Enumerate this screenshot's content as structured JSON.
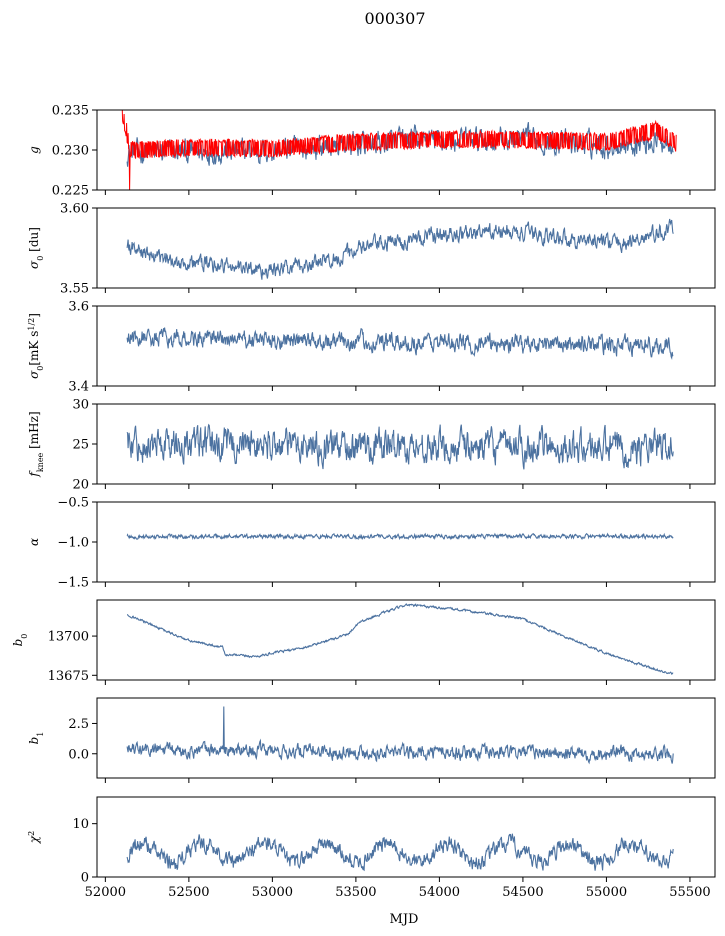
{
  "figure": {
    "title": "000307",
    "xlabel": "MJD"
  },
  "colors": {
    "main": "#4c72a0",
    "red": "#ff0000",
    "axis": "#000000"
  },
  "chart_data": [
    {
      "type": "line",
      "id": "g",
      "ylabel_html": "g",
      "xlim": [
        51950,
        55650
      ],
      "ylim": [
        0.225,
        0.235
      ],
      "yticks": [
        0.225,
        0.23,
        0.235
      ],
      "ytick_labels": [
        "0.225",
        "0.230",
        "0.235"
      ],
      "series": [
        {
          "color": "#4c72a0",
          "x_range": [
            52130,
            55400
          ],
          "mean": 0.2307,
          "trend": [
            [
              52130,
              0.2297
            ],
            [
              53000,
              0.2299
            ],
            [
              53800,
              0.2312
            ],
            [
              54500,
              0.2313
            ],
            [
              55000,
              0.2306
            ],
            [
              55400,
              0.2313
            ]
          ],
          "noise": 0.0012
        },
        {
          "color": "#ff0000",
          "x_range": [
            52100,
            55420
          ],
          "band": 0.0011,
          "trend": [
            [
              52100,
              0.235
            ],
            [
              52150,
              0.23
            ],
            [
              52500,
              0.2303
            ],
            [
              53000,
              0.2302
            ],
            [
              53500,
              0.231
            ],
            [
              54000,
              0.2313
            ],
            [
              54500,
              0.2313
            ],
            [
              55000,
              0.231
            ],
            [
              55300,
              0.2325
            ],
            [
              55420,
              0.2308
            ]
          ],
          "spike": {
            "x": 52145,
            "y": 0.225
          }
        }
      ]
    },
    {
      "type": "line",
      "id": "sigma0_du",
      "ylabel_html": "σ0 [du]",
      "xlim": [
        51950,
        55650
      ],
      "ylim": [
        3.55,
        3.6
      ],
      "yticks": [
        3.55,
        3.6
      ],
      "ytick_labels": [
        "3.55",
        "3.60"
      ],
      "series": [
        {
          "color": "#4c72a0",
          "x_range": [
            52130,
            55400
          ],
          "trend": [
            [
              52130,
              3.578
            ],
            [
              52300,
              3.568
            ],
            [
              52700,
              3.564
            ],
            [
              53000,
              3.561
            ],
            [
              53300,
              3.566
            ],
            [
              53600,
              3.577
            ],
            [
              54000,
              3.583
            ],
            [
              54400,
              3.585
            ],
            [
              54700,
              3.582
            ],
            [
              55100,
              3.578
            ],
            [
              55400,
              3.587
            ]
          ],
          "noise": 0.004
        }
      ]
    },
    {
      "type": "line",
      "id": "sigma0_mk",
      "ylabel_html": "σ0[mK s^1/2]",
      "xlim": [
        51950,
        55650
      ],
      "ylim": [
        3.4,
        3.6
      ],
      "yticks": [
        3.4,
        3.6
      ],
      "ytick_labels": [
        "3.4",
        "3.6"
      ],
      "series": [
        {
          "color": "#4c72a0",
          "x_range": [
            52130,
            55400
          ],
          "trend": [
            [
              52130,
              3.52
            ],
            [
              55400,
              3.5
            ]
          ],
          "noise": 0.018
        }
      ]
    },
    {
      "type": "line",
      "id": "fknee",
      "ylabel_html": "f_knee [mHz]",
      "xlim": [
        51950,
        55650
      ],
      "ylim": [
        20,
        30
      ],
      "yticks": [
        20,
        25,
        30
      ],
      "ytick_labels": [
        "20",
        "25",
        "30"
      ],
      "series": [
        {
          "color": "#4c72a0",
          "x_range": [
            52130,
            55400
          ],
          "trend": [
            [
              52130,
              25
            ],
            [
              55400,
              24.5
            ]
          ],
          "noise": 1.6
        }
      ]
    },
    {
      "type": "line",
      "id": "alpha",
      "ylabel_html": "α",
      "xlim": [
        51950,
        55650
      ],
      "ylim": [
        -1.5,
        -0.5
      ],
      "yticks": [
        -1.5,
        -1.0,
        -0.5
      ],
      "ytick_labels": [
        "−1.5",
        "−1.0",
        "−0.5"
      ],
      "series": [
        {
          "color": "#4c72a0",
          "x_range": [
            52130,
            55400
          ],
          "trend": [
            [
              52130,
              -0.93
            ],
            [
              55400,
              -0.93
            ]
          ],
          "noise": 0.02
        }
      ]
    },
    {
      "type": "line",
      "id": "b0",
      "ylabel_html": "b0",
      "xlim": [
        51950,
        55650
      ],
      "ylim": [
        13672,
        13723
      ],
      "yticks": [
        13675,
        13700
      ],
      "ytick_labels": [
        "13675",
        "13700"
      ],
      "series": [
        {
          "color": "#4c72a0",
          "x_range": [
            52130,
            55400
          ],
          "trend": [
            [
              52130,
              13714
            ],
            [
              52300,
              13706
            ],
            [
              52500,
              13697
            ],
            [
              52700,
              13693
            ],
            [
              52720,
              13688
            ],
            [
              52900,
              13687
            ],
            [
              53200,
              13693
            ],
            [
              53450,
              13701
            ],
            [
              53520,
              13709
            ],
            [
              53800,
              13720
            ],
            [
              54100,
              13717
            ],
            [
              54500,
              13711
            ],
            [
              54700,
              13702
            ],
            [
              55000,
              13689
            ],
            [
              55200,
              13682
            ],
            [
              55380,
              13676
            ]
          ],
          "noise": 0.6
        }
      ]
    },
    {
      "type": "line",
      "id": "b1",
      "ylabel_html": "b1",
      "xlim": [
        51950,
        55650
      ],
      "ylim": [
        -2.0,
        4.6
      ],
      "yticks": [
        0.0,
        2.5
      ],
      "ytick_labels": [
        "0.0",
        "2.5"
      ],
      "series": [
        {
          "color": "#4c72a0",
          "x_range": [
            52130,
            55400
          ],
          "trend": [
            [
              52130,
              0.3
            ],
            [
              55400,
              0.0
            ]
          ],
          "noise": 0.45,
          "spike": {
            "x": 52710,
            "y": 3.9
          }
        }
      ]
    },
    {
      "type": "line",
      "id": "chi2",
      "ylabel_html": "χ^2",
      "xlim": [
        51950,
        55650
      ],
      "ylim": [
        0,
        15
      ],
      "yticks": [
        0,
        10
      ],
      "ytick_labels": [
        "0",
        "10"
      ],
      "xticks": [
        52000,
        52500,
        53000,
        53500,
        54000,
        54500,
        55000,
        55500
      ],
      "xtick_labels": [
        "52000",
        "52500",
        "53000",
        "53500",
        "54000",
        "54500",
        "55000",
        "55500"
      ],
      "series": [
        {
          "color": "#4c72a0",
          "x_range": [
            52130,
            55400
          ],
          "trend": [
            [
              52130,
              4.5
            ],
            [
              55400,
              4.5
            ]
          ],
          "noise": 1.2,
          "period": 365,
          "amp": 1.8
        }
      ]
    }
  ]
}
